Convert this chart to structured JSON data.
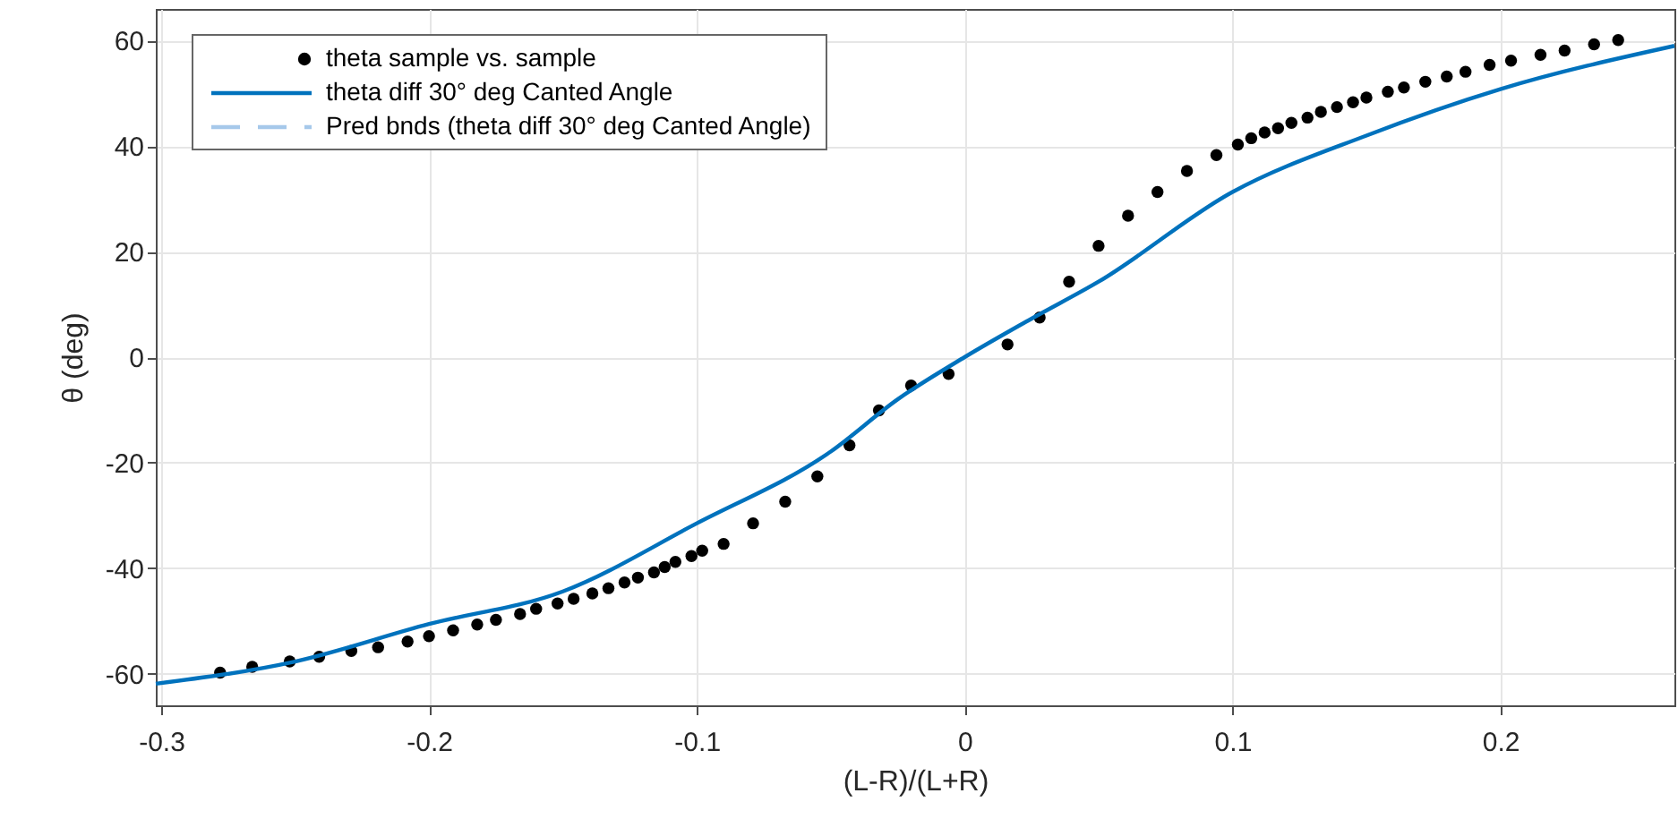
{
  "chart_data": {
    "type": "scatter",
    "xlabel": "(L-R)/(L+R)",
    "ylabel": "θ (deg)",
    "xlim": [
      -0.302,
      0.265
    ],
    "ylim": [
      -66,
      66
    ],
    "xticks": [
      -0.3,
      -0.2,
      -0.1,
      0,
      0.1,
      0.2
    ],
    "yticks": [
      -60,
      -40,
      -20,
      0,
      20,
      40,
      60
    ],
    "grid": true,
    "legend": "top left",
    "series": [
      {
        "name": "theta sample vs. sample",
        "marker": "circle",
        "color": "#000000",
        "x": [
          -0.278,
          -0.266,
          -0.252,
          -0.241,
          -0.229,
          -0.219,
          -0.208,
          -0.2,
          -0.191,
          -0.182,
          -0.175,
          -0.166,
          -0.16,
          -0.152,
          -0.146,
          -0.139,
          -0.133,
          -0.127,
          -0.122,
          -0.116,
          -0.112,
          -0.108,
          -0.102,
          -0.098,
          -0.09,
          -0.079,
          -0.067,
          -0.055,
          -0.043,
          -0.032,
          -0.02,
          -0.006,
          0.016,
          0.028,
          0.039,
          0.05,
          0.061,
          0.072,
          0.083,
          0.094,
          0.102,
          0.107,
          0.112,
          0.117,
          0.122,
          0.128,
          0.133,
          0.139,
          0.145,
          0.15,
          0.158,
          0.164,
          0.172,
          0.18,
          0.187,
          0.196,
          0.204,
          0.215,
          0.224,
          0.235,
          0.244
        ],
        "values": [
          -59.8,
          -58.7,
          -57.7,
          -56.8,
          -55.7,
          -55,
          -53.9,
          -52.9,
          -51.8,
          -50.7,
          -49.8,
          -48.7,
          -47.7,
          -46.7,
          -45.8,
          -44.8,
          -43.8,
          -42.7,
          -41.8,
          -40.8,
          -39.8,
          -38.8,
          -37.7,
          -36.7,
          -35.4,
          -31.5,
          -27.4,
          -22.6,
          -16.7,
          -10.1,
          -5.4,
          -3.2,
          2.4,
          7.5,
          14.3,
          21.1,
          26.8,
          31.3,
          35.3,
          38.3,
          40.3,
          41.5,
          42.6,
          43.4,
          44.4,
          45.4,
          46.5,
          47.4,
          48.3,
          49.2,
          50.3,
          51.1,
          52.2,
          53.2,
          54.1,
          55.4,
          56.2,
          57.3,
          58.1,
          59.3,
          60.1
        ]
      },
      {
        "name": "theta diff 30° deg Canted Angle",
        "type": "line",
        "line_style": "solid",
        "color": "#0072bd",
        "x": [
          -0.302,
          -0.25,
          -0.2,
          -0.15,
          -0.1,
          -0.05,
          -0.025,
          0,
          0.025,
          0.05,
          0.1,
          0.15,
          0.2,
          0.265
        ],
        "values": [
          -61.9,
          -57.7,
          -50.6,
          -44.4,
          -31.5,
          -17.9,
          -8,
          0,
          7.3,
          14.3,
          31.3,
          42,
          50.8,
          59
        ]
      },
      {
        "name": "Pred bnds (theta diff 30° deg Canted Angle)",
        "type": "line",
        "line_style": "dashed",
        "color": "#a6c8ea",
        "values": [
          null
        ]
      }
    ]
  }
}
